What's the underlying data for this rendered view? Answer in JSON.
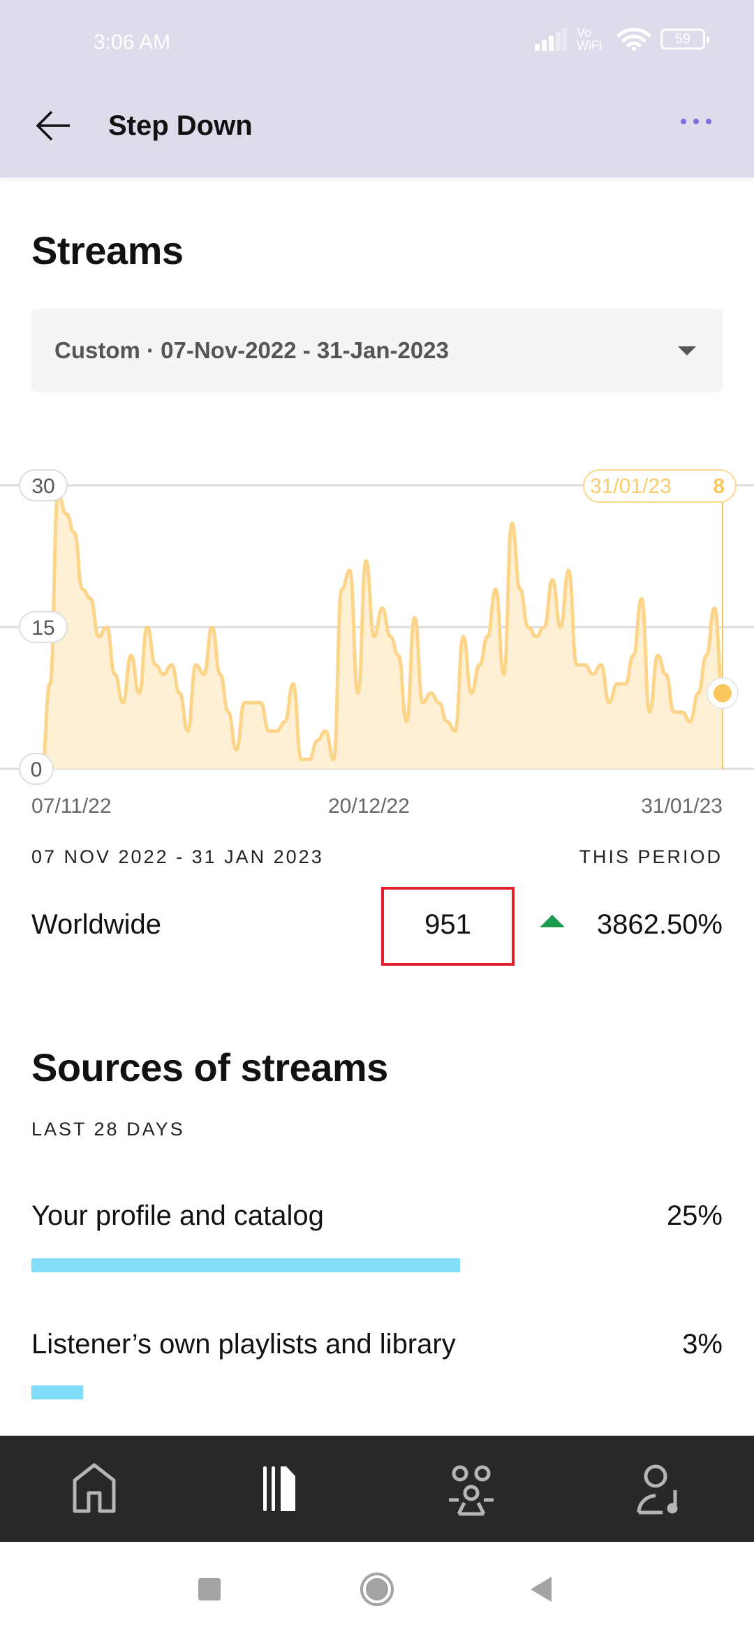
{
  "status_bar": {
    "time": "3:06 AM",
    "network": "Vo WiFi",
    "battery": "59",
    "icons": [
      "signal-icon",
      "wifi-icon",
      "battery-icon"
    ]
  },
  "app_bar": {
    "title": "Step Down",
    "back_icon": "arrow-left-icon",
    "menu_icon": "more-dots-icon"
  },
  "streams": {
    "heading": "Streams",
    "date_range_select": "Custom · 07-Nov-2022 - 31-Jan-2023",
    "period_label": "07 NOV 2022 - 31 JAN 2023",
    "period_caption": "THIS PERIOD",
    "region": "Worldwide",
    "total": "951",
    "change": "3862.50%",
    "change_direction": "up"
  },
  "chart_data": {
    "type": "area",
    "y_ticks": [
      "30",
      "15",
      "0"
    ],
    "ylim": [
      0,
      30
    ],
    "x_ticks": [
      "07/11/22",
      "20/12/22",
      "31/01/23"
    ],
    "tooltip": {
      "date": "31/01/23",
      "value": "8"
    },
    "grid": true,
    "color": "#fdd58a",
    "fill": "#fdf0d5",
    "values": [
      0,
      9,
      29,
      27,
      25,
      19,
      18,
      14,
      15,
      10,
      7,
      12,
      8,
      15,
      11,
      10,
      11,
      8,
      4,
      11,
      10,
      15,
      10,
      6,
      2,
      7,
      7,
      7,
      4,
      4,
      5,
      9,
      1,
      1,
      3,
      4,
      1,
      19,
      21,
      8,
      22,
      14,
      17,
      14,
      12,
      5,
      16,
      7,
      8,
      7,
      5,
      4,
      14,
      8,
      11,
      14,
      19,
      10,
      26,
      19,
      15,
      14,
      15,
      20,
      15,
      21,
      11,
      11,
      10,
      11,
      7,
      9,
      9,
      12,
      18,
      6,
      12,
      10,
      6,
      6,
      5,
      8,
      12,
      17,
      8
    ]
  },
  "sources": {
    "heading": "Sources of streams",
    "caption": "LAST 28 DAYS",
    "items": [
      {
        "label": "Your profile and catalog",
        "percent": "25%",
        "value": 25
      },
      {
        "label": "Listener’s own playlists and library",
        "percent": "3%",
        "value": 3
      }
    ],
    "bar_color": "#82ddf9"
  },
  "bottom_nav": {
    "items": [
      "home-icon",
      "music-catalog-icon",
      "audience-icon",
      "profile-music-icon"
    ],
    "active": 1
  },
  "system_nav": [
    "recents-button",
    "home-button",
    "back-button"
  ]
}
